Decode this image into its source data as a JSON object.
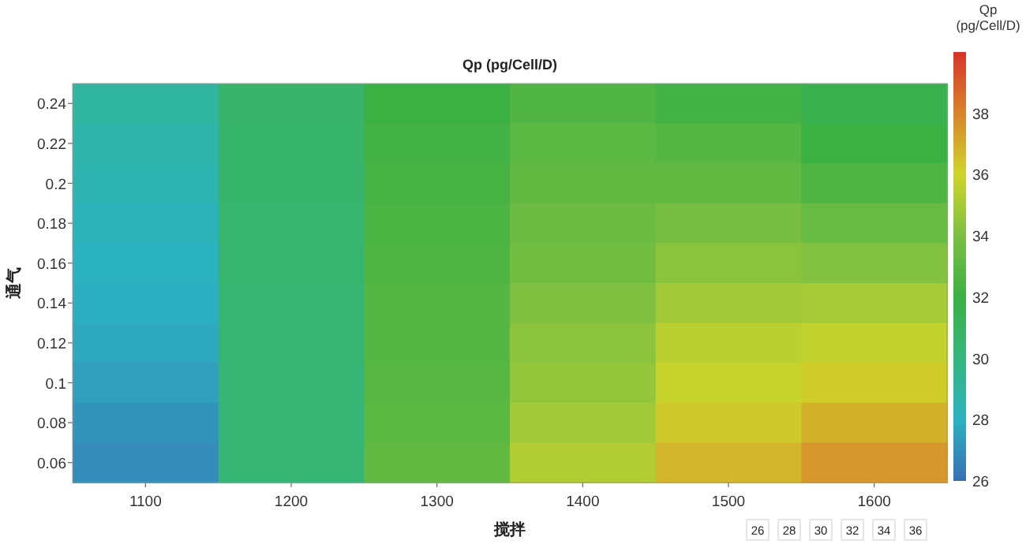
{
  "chart_data": {
    "type": "heatmap",
    "title": "Qp (pg/Cell/D)",
    "xlabel": "搅拌",
    "ylabel": "通气",
    "clabel": "Qp\n(pg/Cell/D)",
    "categories": [
      "1100",
      "1200",
      "1300",
      "1400",
      "1500",
      "1600"
    ],
    "y_categories": [
      "0.24",
      "0.22",
      "0.2",
      "0.18",
      "0.16",
      "0.14",
      "0.12",
      "0.1",
      "0.08",
      "0.06"
    ],
    "cells": [
      [
        29.0,
        30.7,
        32.0,
        32.7,
        32.2,
        31.6
      ],
      [
        28.7,
        30.6,
        32.2,
        33.0,
        32.8,
        32.0
      ],
      [
        28.5,
        30.6,
        32.3,
        33.2,
        33.2,
        32.6
      ],
      [
        28.2,
        30.5,
        32.5,
        33.5,
        33.9,
        33.4
      ],
      [
        28.0,
        30.5,
        32.6,
        33.7,
        34.4,
        34.2
      ],
      [
        27.9,
        30.4,
        32.8,
        34.1,
        34.9,
        35.0
      ],
      [
        27.7,
        30.4,
        32.8,
        34.4,
        35.5,
        35.7
      ],
      [
        27.4,
        30.3,
        32.9,
        34.6,
        35.8,
        36.2
      ],
      [
        27.1,
        30.3,
        33.0,
        34.9,
        36.3,
        36.9
      ],
      [
        26.9,
        30.3,
        33.2,
        35.3,
        36.8,
        37.5
      ]
    ],
    "clim": [
      26,
      40
    ],
    "cticks": [
      26,
      28,
      30,
      32,
      34,
      36,
      38
    ],
    "annotations": [
      "26",
      "28",
      "30",
      "32",
      "34",
      "36"
    ]
  }
}
